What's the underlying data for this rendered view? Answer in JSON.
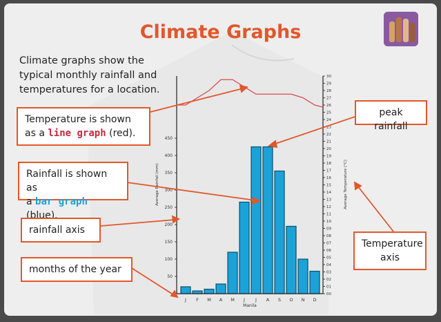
{
  "title": "Climate Graphs",
  "intro": {
    "line1": "Climate graphs show the",
    "line2": "typical monthly rainfall and",
    "line3": "temperatures for a location."
  },
  "callouts": {
    "temperature": {
      "line1": "Temperature is shown",
      "line2_prefix": "as a ",
      "highlight": "line graph",
      "line2_suffix": " (red)."
    },
    "rainfall": {
      "line1": "Rainfall is shown as",
      "line2_prefix": "a ",
      "highlight": "bar graph",
      "line2_suffix": " (blue)."
    },
    "rainfall_axis": "rainfall axis",
    "months": "months of the year",
    "peak": "peak rainfall",
    "temp_axis": {
      "line1": "Temperature",
      "line2": "axis"
    }
  },
  "colors": {
    "accent": "#e2572b",
    "bar": "#1ba2d8",
    "line": "#d9484f",
    "red_text": "#c62a3f"
  },
  "logo_icon": "raised-hands-icon",
  "chart_data": {
    "type": "bar",
    "xlabel": "Manila",
    "ylabel": "Average Rainfall (mm)",
    "y2label": "Average Temperature (°C)",
    "categories": [
      "J",
      "F",
      "M",
      "A",
      "M",
      "J",
      "J",
      "A",
      "S",
      "O",
      "N",
      "D"
    ],
    "series": [
      {
        "name": "Rainfall",
        "type": "bar",
        "axis": "left",
        "values": [
          20,
          8,
          13,
          28,
          120,
          265,
          425,
          425,
          355,
          195,
          100,
          65
        ]
      },
      {
        "name": "Temperature",
        "type": "line",
        "axis": "right",
        "values": [
          26,
          27,
          28,
          29.5,
          29.5,
          28.5,
          27.5,
          27.5,
          27.5,
          27.5,
          27,
          26
        ]
      }
    ],
    "ylim": [
      0,
      500
    ],
    "yticks": [
      50,
      100,
      150,
      200,
      250,
      300,
      350,
      400,
      450
    ],
    "y2lim": [
      0,
      30
    ],
    "y2ticks": [
      "00",
      "01",
      "02",
      "03",
      "04",
      "05",
      "06",
      "07",
      "08",
      "09",
      "10",
      "11",
      "12",
      "13",
      "14",
      "15",
      "16",
      "17",
      "18",
      "19",
      "20",
      "21",
      "22",
      "23",
      "24",
      "25",
      "26",
      "27",
      "28",
      "29",
      "30"
    ]
  }
}
